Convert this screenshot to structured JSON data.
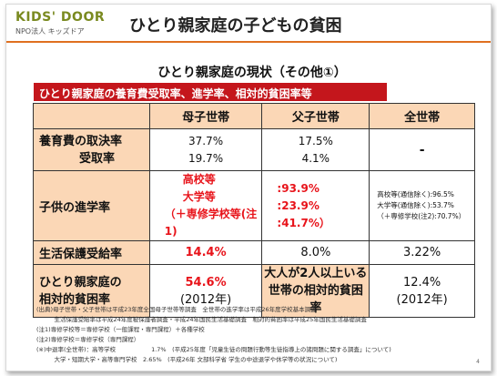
{
  "header": {
    "logo_main": "KIDS' DOOR",
    "logo_sub": "NPO法人 キッズドア",
    "title": "ひとり親家庭の子どもの貧困"
  },
  "subtitle": "ひとり親家庭の現状（その他①）",
  "banner": "ひとり親家庭の養育費受取率、進学率、相対的貧困率等",
  "table": {
    "columns": [
      "母子世帯",
      "父子世帯",
      "全世帯"
    ],
    "child_support": {
      "label1": "養育費の取決率",
      "label2": "受取率",
      "mother": [
        "37.7%",
        "19.7%"
      ],
      "father": [
        "17.5%",
        "4.1%"
      ],
      "all": "-"
    },
    "advancement": {
      "label": "子供の進学率",
      "mother_lines": [
        "高校等",
        "大学等",
        "（＋専修学校等(注1)"
      ],
      "father_lines": [
        ":93.9%",
        ":23.9%",
        ":41.7%）"
      ],
      "all_lines": [
        "高校等(通信除く):96.5%",
        "大学等(通信除く):53.7%",
        "（＋専修学校(注2):70.7%）"
      ]
    },
    "welfare": {
      "label": "生活保護受給率",
      "mother": "14.4%",
      "father": "8.0%",
      "all": "3.22%"
    },
    "poverty": {
      "label1": "ひとり親家庭の",
      "label2": "相対的貧困率",
      "mother1": "54.6%",
      "mother2": "(2012年)",
      "middle1": "大人が2人以上いる",
      "middle2": "世帯の相対的貧困率",
      "all1": "12.4%",
      "all2": "(2012年)"
    }
  },
  "notes": [
    "(出典)母子世帯・父子世帯は平成23年度全国母子世帯等調査　全世帯の進学率は平成26年度学校基本調査",
    "　　　生活保護受給率は平成24年度被保護者調査・平成24年国民生活基礎調査　相対的貧困率は平成25年国民生活基礎調査",
    "(注1)専修学校等＝専修学校（一般課程・専門課程）＋各種学校",
    "(注2)専修学校＝専修学校（専門課程）",
    "(※)中退率(全世帯)：高等学校　　　　　　1.7%　(平成25年度「児童生徒の問題行動等生徒指導上の諸問題に関する調査」について)",
    "　　　大学・短期大学・高等専門学校　2.65%　(平成26年 文部科学省 学生の中途退学や休学等の状況について)"
  ],
  "page_number": "4"
}
